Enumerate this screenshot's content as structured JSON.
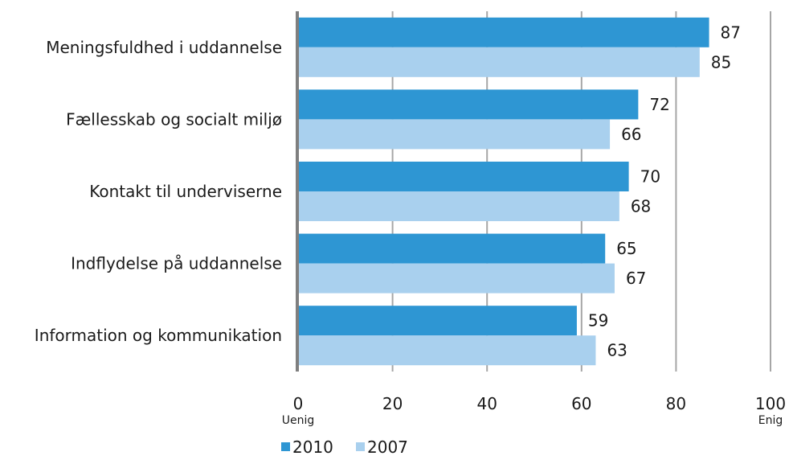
{
  "chart_data": {
    "type": "bar",
    "orientation": "horizontal",
    "title": "",
    "xlabel": "",
    "ylabel": "",
    "categories": [
      "Meningsfuldhed i uddannelse",
      "Fællesskab og socialt miljø",
      "Kontakt til underviserne",
      "Indflydelse på uddannelse",
      "Information og kommunikation"
    ],
    "series": [
      {
        "name": "2010",
        "color": "#2E96D3",
        "values": [
          87,
          72,
          70,
          65,
          59
        ]
      },
      {
        "name": "2007",
        "color": "#A9D0EE",
        "values": [
          85,
          66,
          68,
          67,
          63
        ]
      }
    ],
    "xlim": [
      0,
      100
    ],
    "xticks": [
      "0",
      "20",
      "40",
      "60",
      "80",
      "100"
    ],
    "axis_end_labels": {
      "min": "Uenig",
      "max": "Enig"
    },
    "grid": true,
    "grid_color": "#A6A6A6",
    "axis_color": "#7F7F7F",
    "legend": {
      "placement": "bottom-left",
      "items": [
        "2010",
        "2007"
      ]
    }
  }
}
